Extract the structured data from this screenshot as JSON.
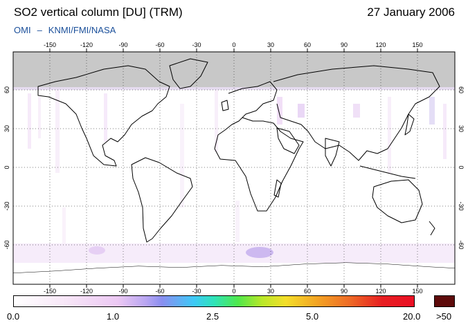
{
  "header": {
    "title": "SO2 vertical column [DU] (TRM)",
    "date": "27 January 2006",
    "credit_left": "OMI",
    "credit_sep": "–",
    "credit_right": "KNMI/FMI/NASA"
  },
  "map": {
    "lon_labels": [
      "-150",
      "-120",
      "-90",
      "-60",
      "-30",
      "0",
      "30",
      "60",
      "90",
      "120",
      "150"
    ],
    "lat_labels": [
      "60",
      "30",
      "0",
      "-30",
      "-60"
    ],
    "colors": {
      "land_outline": "#000000",
      "no_data": "#c8c8c8",
      "grid": "#000000"
    }
  },
  "colorbar": {
    "labels": [
      "0.0",
      "1.0",
      "2.5",
      "5.0",
      "20.0"
    ],
    "overflow_label": ">50",
    "overflow_color": "#5e0b0b"
  }
}
